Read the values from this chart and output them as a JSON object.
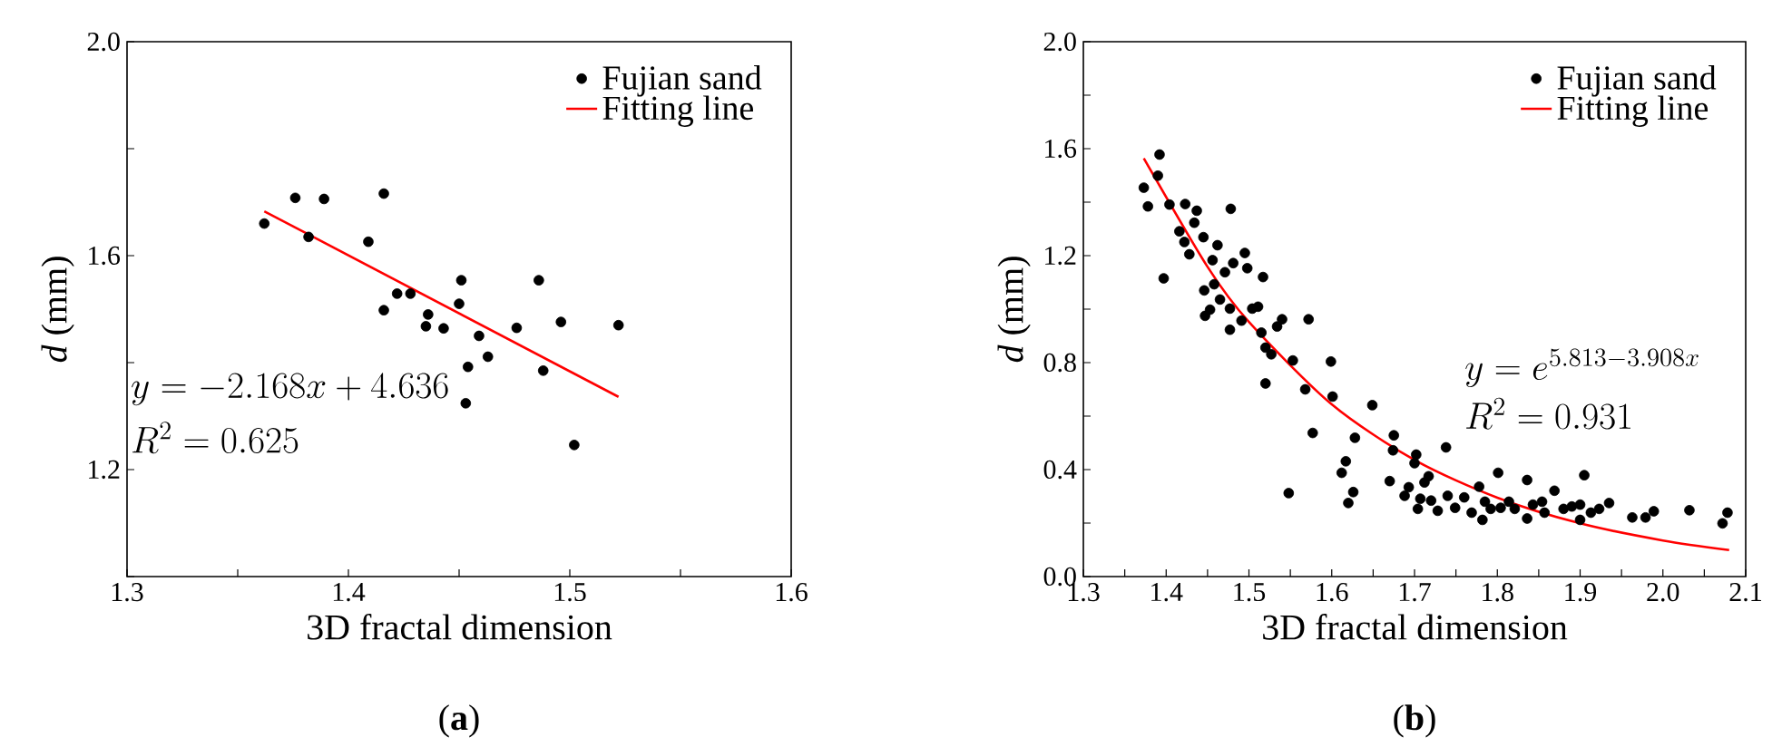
{
  "chart_data": [
    {
      "type": "scatter",
      "xlabel": "3D fractal dimension",
      "ylabel": "*d* (mm)",
      "annotations": [
        "y = -2.168x + 4.636",
        "R^{2} = 0.625",
        "(**a**)"
      ],
      "xlim": [
        1.3,
        1.6
      ],
      "ylim": [
        1.0,
        2.0
      ],
      "xticks": [
        1.3,
        {
          "value": 1.35,
          "label": null
        },
        1.4,
        {
          "value": 1.45,
          "label": null
        },
        1.5,
        {
          "value": 1.55,
          "label": null
        },
        1.6
      ],
      "yticks": [
        {
          "value": 1.0,
          "label": null
        },
        1.2,
        {
          "value": 1.4,
          "label": null
        },
        1.6,
        {
          "value": 1.8,
          "label": null
        },
        {
          "value": 2.0,
          "label": "2.0"
        }
      ],
      "legend": "top right",
      "marker": "circle",
      "series": [
        {
          "name": "Fujian sand",
          "type": "scatter",
          "color": "#000000",
          "x": [
            1.362,
            1.376,
            1.389,
            1.382,
            1.416,
            1.409,
            1.416,
            1.422,
            1.428,
            1.435,
            1.436,
            1.443,
            1.45,
            1.451,
            1.454,
            1.453,
            1.459,
            1.463,
            1.476,
            1.486,
            1.488,
            1.496,
            1.502,
            1.522
          ],
          "values": [
            1.66,
            1.708,
            1.706,
            1.635,
            1.716,
            1.626,
            1.498,
            1.529,
            1.529,
            1.468,
            1.49,
            1.464,
            1.51,
            1.554,
            1.392,
            1.324,
            1.45,
            1.411,
            1.465,
            1.554,
            1.385,
            1.476,
            1.246,
            1.47
          ]
        },
        {
          "name": "Fitting line",
          "type": "line",
          "marker": "none",
          "color": "#ff0000",
          "x": [
            1.362,
            1.522
          ],
          "values": [
            1.683,
            1.336
          ]
        }
      ]
    },
    {
      "type": "scatter",
      "xlabel": "3D fractal dimension",
      "ylabel": "*d* (mm)",
      "annotations": [
        "y = e^{5.813-3.908x}",
        "R^{2} = 0.931",
        "(**b**)"
      ],
      "xlim": [
        1.3,
        2.1
      ],
      "ylim": [
        0.0,
        2.0
      ],
      "xticks": [
        1.3,
        {
          "value": 1.35,
          "label": null
        },
        1.4,
        {
          "value": 1.45,
          "label": null
        },
        1.5,
        {
          "value": 1.55,
          "label": null
        },
        1.6,
        {
          "value": 1.65,
          "label": null
        },
        1.7,
        {
          "value": 1.75,
          "label": null
        },
        1.8,
        {
          "value": 1.85,
          "label": null
        },
        1.9,
        {
          "value": 1.95,
          "label": null
        },
        {
          "value": 2.0,
          "label": "2.0"
        },
        {
          "value": 2.05,
          "label": null
        },
        2.1
      ],
      "yticks": [
        {
          "value": 0.0,
          "label": "0.0"
        },
        {
          "value": 0.2,
          "label": null
        },
        0.4,
        {
          "value": 0.6,
          "label": null
        },
        0.8,
        {
          "value": 1.0,
          "label": null
        },
        1.2,
        {
          "value": 1.4,
          "label": null
        },
        1.6,
        {
          "value": 1.8,
          "label": null
        },
        {
          "value": 2.0,
          "label": "2.0"
        }
      ],
      "legend": "top right",
      "marker": "circle",
      "series": [
        {
          "name": "Fujian sand",
          "type": "scatter",
          "color": "#000000",
          "x": [
            1.373,
            1.378,
            1.392,
            1.39,
            1.397,
            1.404,
            1.423,
            1.437,
            1.434,
            1.416,
            1.422,
            1.428,
            1.445,
            1.462,
            1.456,
            1.478,
            1.495,
            1.498,
            1.481,
            1.471,
            1.458,
            1.446,
            1.447,
            1.453,
            1.465,
            1.477,
            1.477,
            1.491,
            1.504,
            1.511,
            1.517,
            1.515,
            1.52,
            1.527,
            1.534,
            1.54,
            1.52,
            1.553,
            1.548,
            1.572,
            1.568,
            1.577,
            1.599,
            1.601,
            1.612,
            1.617,
            1.62,
            1.626,
            1.628,
            1.649,
            1.67,
            1.675,
            1.674,
            1.688,
            1.693,
            1.702,
            1.7,
            1.712,
            1.717,
            1.704,
            1.707,
            1.72,
            1.728,
            1.738,
            1.74,
            1.749,
            1.76,
            1.769,
            1.778,
            1.782,
            1.785,
            1.792,
            1.801,
            1.804,
            1.814,
            1.821,
            1.836,
            1.836,
            1.843,
            1.854,
            1.857,
            1.869,
            1.88,
            1.89,
            1.9,
            1.905,
            1.9,
            1.913,
            1.923,
            1.935,
            1.963,
            1.979,
            1.989,
            2.032,
            2.072,
            2.078
          ],
          "values": [
            1.454,
            1.384,
            1.578,
            1.499,
            1.115,
            1.391,
            1.393,
            1.368,
            1.323,
            1.291,
            1.251,
            1.205,
            1.269,
            1.239,
            1.183,
            1.375,
            1.21,
            1.153,
            1.172,
            1.138,
            1.093,
            1.07,
            0.975,
            0.998,
            1.036,
            1.002,
            0.923,
            0.957,
            1.002,
            1.009,
            1.12,
            0.912,
            0.856,
            0.831,
            0.935,
            0.962,
            0.722,
            0.808,
            0.312,
            0.962,
            0.7,
            0.537,
            0.804,
            0.673,
            0.388,
            0.431,
            0.275,
            0.316,
            0.519,
            0.641,
            0.357,
            0.528,
            0.472,
            0.302,
            0.334,
            0.456,
            0.424,
            0.352,
            0.375,
            0.253,
            0.291,
            0.284,
            0.246,
            0.483,
            0.302,
            0.257,
            0.296,
            0.239,
            0.336,
            0.212,
            0.28,
            0.253,
            0.388,
            0.257,
            0.28,
            0.253,
            0.361,
            0.217,
            0.269,
            0.28,
            0.239,
            0.321,
            0.253,
            0.262,
            0.212,
            0.379,
            0.269,
            0.239,
            0.253,
            0.275,
            0.221,
            0.221,
            0.244,
            0.248,
            0.199,
            0.239
          ]
        },
        {
          "name": "Fitting line",
          "type": "line",
          "marker": "none",
          "color": "#ff0000",
          "x": [
            1.373,
            1.45,
            1.5,
            1.6,
            1.7,
            1.8,
            1.9,
            2.0,
            2.08
          ],
          "values": [
            1.564,
            1.158,
            0.952,
            0.644,
            0.436,
            0.295,
            0.199,
            0.135,
            0.099
          ]
        }
      ]
    }
  ]
}
